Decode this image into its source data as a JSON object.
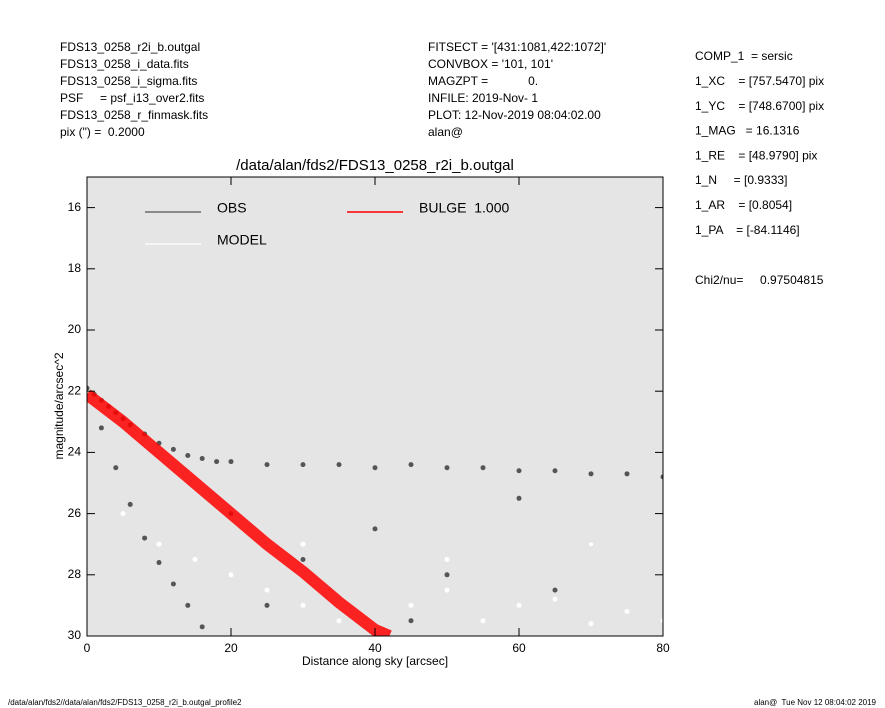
{
  "header": {
    "left": [
      "FDS13_0258_r2i_b.outgal",
      "FDS13_0258_i_data.fits",
      "FDS13_0258_i_sigma.fits",
      "PSF     = psf_i13_over2.fits",
      "FDS13_0258_r_finmask.fits",
      "pix (\") =  0.2000"
    ],
    "middle": [
      "FITSECT = '[431:1081,422:1072]'",
      "CONVBOX = '101, 101'",
      "MAGZPT =            0.",
      "INFILE: 2019-Nov- 1",
      "PLOT: 12-Nov-2019 08:04:02.00",
      "alan@"
    ],
    "params": [
      "COMP_1  = sersic",
      "1_XC    = [757.5470] pix",
      "1_YC    = [748.6700] pix",
      "1_MAG   = 16.1316",
      "1_RE    = [48.9790] pix",
      "1_N     = [0.9333]",
      "1_AR    = [0.8054]",
      "1_PA    = [-84.1146]"
    ],
    "chi2": "Chi2/nu=     0.97504815"
  },
  "footer": {
    "left": "/data/alan/fds2//data/alan/fds2/FDS13_0258_r2i_b.outgal_profile2",
    "right": "alan@  Tue Nov 12 08:04:02 2019"
  },
  "chart_data": {
    "type": "scatter",
    "title": "/data/alan/fds2/FDS13_0258_r2i_b.outgal",
    "x_label": "Distance along sky [arcsec]",
    "y_label": "magnitude/arcsec^2",
    "xlim": [
      0,
      80
    ],
    "xticks": [
      0,
      20,
      40,
      60,
      80
    ],
    "ylim": [
      15,
      30
    ],
    "yticks": [
      16,
      18,
      20,
      22,
      24,
      26,
      28,
      30
    ],
    "y_inverted": true,
    "background": "#e5e5e5",
    "series": [
      {
        "name": "OBS",
        "color": "#555555",
        "marker": "dot",
        "x": [
          0,
          1,
          2,
          3,
          4,
          5,
          6,
          8,
          10,
          12,
          14,
          16,
          18,
          20,
          25,
          30,
          35,
          40,
          45,
          50,
          55,
          60,
          65,
          70,
          75,
          80,
          2,
          4,
          6,
          8,
          10,
          12,
          14,
          16,
          20,
          30,
          40,
          50,
          60,
          70,
          25,
          45,
          65
        ],
        "values": [
          21.9,
          22.1,
          22.3,
          22.5,
          22.7,
          22.9,
          23.1,
          23.4,
          23.7,
          23.9,
          24.1,
          24.2,
          24.3,
          24.3,
          24.4,
          24.4,
          24.4,
          24.5,
          24.4,
          24.5,
          24.5,
          24.6,
          24.6,
          24.7,
          24.7,
          24.8,
          23.2,
          24.5,
          25.7,
          26.8,
          27.6,
          28.3,
          29.0,
          29.7,
          26.0,
          27.5,
          26.5,
          28.0,
          25.5,
          27.0,
          29.0,
          29.5,
          28.5
        ]
      },
      {
        "name": "MODEL",
        "color": "#ffffff",
        "marker": "dot",
        "x": [
          5,
          10,
          15,
          20,
          25,
          30,
          35,
          40,
          45,
          50,
          55,
          60,
          65,
          70,
          75,
          80,
          30,
          50,
          70
        ],
        "values": [
          26.0,
          27.0,
          27.5,
          28.0,
          28.5,
          29.0,
          29.5,
          29.8,
          29.0,
          28.5,
          29.5,
          29.0,
          28.8,
          29.6,
          29.2,
          29.5,
          27.0,
          27.5,
          27.0
        ]
      },
      {
        "name": "BULGE  1.000",
        "color": "#ff0000",
        "marker": "line",
        "x": [
          0,
          5,
          10,
          15,
          20,
          25,
          30,
          35,
          40,
          42
        ],
        "values": [
          22.1,
          23.0,
          24.0,
          25.0,
          26.0,
          27.0,
          27.9,
          28.9,
          29.8,
          30.0
        ]
      }
    ]
  }
}
